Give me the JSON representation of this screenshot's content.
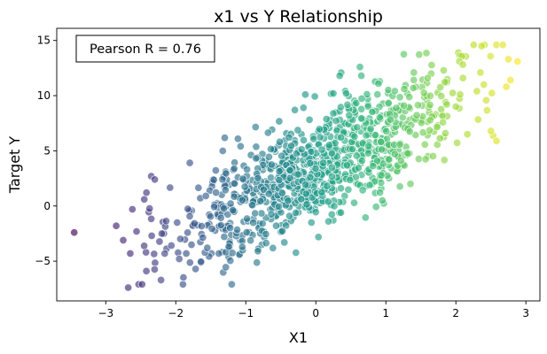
{
  "chart_data": {
    "type": "scatter",
    "title": "x1 vs Y Relationship",
    "xlabel": "X1",
    "ylabel": "Target Y",
    "xlim": [
      -3.7,
      3.2
    ],
    "ylim": [
      -8.6,
      16.1
    ],
    "xticks": [
      -3,
      -2,
      -1,
      0,
      1,
      2,
      3
    ],
    "yticks": [
      -5,
      0,
      5,
      10,
      15
    ],
    "xtick_labels": [
      "−3",
      "−2",
      "−1",
      "0",
      "1",
      "2",
      "3"
    ],
    "ytick_labels": [
      "−5",
      "0",
      "5",
      "10",
      "15"
    ],
    "grid": false,
    "annotation": "Pearson R = 0.76",
    "annotation_placement": "top-left",
    "colormap": "viridis",
    "marker_edge_color": "#ffffff",
    "marker_alpha": 0.65,
    "n_points": 1000,
    "correlation": 0.76,
    "regression": {
      "slope": 3.0,
      "intercept": 3.4,
      "residual_sd": 2.6
    },
    "x_distribution": {
      "mean": 0.0,
      "sd": 1.0
    },
    "extreme_points": [
      {
        "x": -3.45,
        "y": -2.4
      },
      {
        "x": -2.85,
        "y": -1.8
      },
      {
        "x": -2.75,
        "y": -3.1
      },
      {
        "x": -2.68,
        "y": -7.4
      },
      {
        "x": -2.65,
        "y": -4.3
      },
      {
        "x": -2.62,
        "y": -0.3
      },
      {
        "x": -2.42,
        "y": -5.9
      },
      {
        "x": -2.35,
        "y": 2.7
      },
      {
        "x": -2.3,
        "y": 2.4
      },
      {
        "x": -2.45,
        "y": 0.6
      },
      {
        "x": -2.2,
        "y": -2.5
      },
      {
        "x": -1.85,
        "y": -4.3
      },
      {
        "x": -1.8,
        "y": 3.9
      },
      {
        "x": -1.95,
        "y": -4.8
      },
      {
        "x": -1.55,
        "y": -3.8
      },
      {
        "x": -1.05,
        "y": -3.7
      },
      {
        "x": -0.45,
        "y": -3.3
      },
      {
        "x": -0.15,
        "y": 10.1
      },
      {
        "x": 0.25,
        "y": 10.2
      },
      {
        "x": 0.65,
        "y": 11.8
      },
      {
        "x": 0.95,
        "y": 0.5
      },
      {
        "x": 1.4,
        "y": 12.1
      },
      {
        "x": 2.05,
        "y": 13.1
      },
      {
        "x": 2.1,
        "y": 12.8
      },
      {
        "x": 2.35,
        "y": 12.1
      },
      {
        "x": 2.4,
        "y": 11.0
      },
      {
        "x": 2.5,
        "y": 6.8
      },
      {
        "x": 2.58,
        "y": 5.9
      },
      {
        "x": 2.67,
        "y": 14.6
      },
      {
        "x": 2.72,
        "y": 10.8
      },
      {
        "x": 2.75,
        "y": 13.3
      },
      {
        "x": 2.78,
        "y": 11.4
      },
      {
        "x": 2.88,
        "y": 13.1
      },
      {
        "x": 2.3,
        "y": 10.4
      },
      {
        "x": 2.0,
        "y": 9.0
      },
      {
        "x": 1.85,
        "y": 6.6
      }
    ]
  }
}
